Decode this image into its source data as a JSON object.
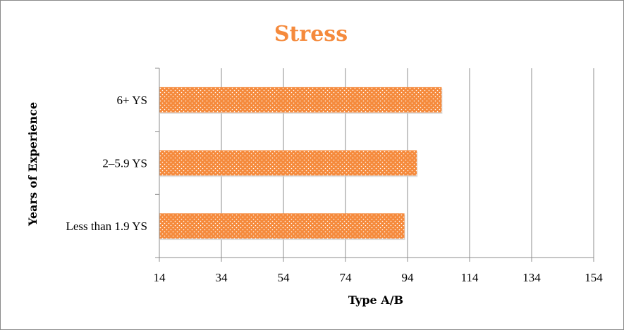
{
  "chart_data": {
    "type": "bar",
    "orientation": "horizontal",
    "title": "Stress",
    "xlabel": "Type A/B",
    "ylabel": "Years of Experience",
    "categories": [
      "Less than 1.9 YS",
      "2–5.9 YS",
      "6+ YS"
    ],
    "values": [
      93,
      97,
      105
    ],
    "xlim": [
      14,
      154
    ],
    "xticks": [
      14,
      34,
      54,
      74,
      94,
      114,
      134,
      154
    ],
    "grid": true,
    "legend": "none"
  },
  "colors": {
    "bar_fill": "#f58a3c",
    "bar_dots": "#ffffff",
    "title": "#f58a3c",
    "grid": "#8c8c8c",
    "axis": "#8c8c8c"
  }
}
